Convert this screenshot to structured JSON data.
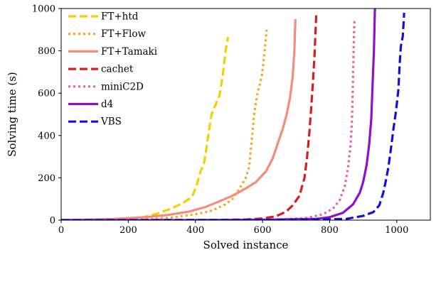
{
  "chart_data": {
    "type": "line",
    "xlabel": "Solved instance",
    "ylabel": "Solving time (s)",
    "xlim": [
      0,
      1100
    ],
    "ylim": [
      0,
      1000
    ],
    "xticks": [
      0,
      200,
      400,
      600,
      800,
      1000
    ],
    "yticks": [
      0,
      200,
      400,
      600,
      800,
      1000
    ],
    "grid": false,
    "legend_position": "top-left",
    "series": [
      {
        "name": "FT+htd",
        "color": "#f5d000",
        "dash": "dashed",
        "points": [
          [
            0,
            0
          ],
          [
            200,
            2
          ],
          [
            240,
            12
          ],
          [
            280,
            28
          ],
          [
            320,
            50
          ],
          [
            360,
            78
          ],
          [
            390,
            110
          ],
          [
            405,
            170
          ],
          [
            415,
            230
          ],
          [
            425,
            262
          ],
          [
            432,
            330
          ],
          [
            440,
            420
          ],
          [
            448,
            500
          ],
          [
            460,
            545
          ],
          [
            472,
            590
          ],
          [
            482,
            690
          ],
          [
            490,
            800
          ],
          [
            497,
            865
          ]
        ]
      },
      {
        "name": "FT+Flow",
        "color": "#f5a623",
        "dash": "dotted",
        "points": [
          [
            0,
            0
          ],
          [
            250,
            4
          ],
          [
            330,
            12
          ],
          [
            400,
            28
          ],
          [
            450,
            45
          ],
          [
            490,
            75
          ],
          [
            510,
            100
          ],
          [
            530,
            145
          ],
          [
            550,
            200
          ],
          [
            560,
            250
          ],
          [
            568,
            380
          ],
          [
            575,
            500
          ],
          [
            585,
            600
          ],
          [
            598,
            680
          ],
          [
            606,
            790
          ],
          [
            612,
            900
          ]
        ]
      },
      {
        "name": "FT+Tamaki",
        "color": "#f48c7c",
        "dash": "solid",
        "points": [
          [
            0,
            0
          ],
          [
            150,
            5
          ],
          [
            250,
            14
          ],
          [
            320,
            25
          ],
          [
            380,
            40
          ],
          [
            430,
            62
          ],
          [
            470,
            88
          ],
          [
            510,
            115
          ],
          [
            550,
            150
          ],
          [
            580,
            180
          ],
          [
            610,
            230
          ],
          [
            630,
            290
          ],
          [
            645,
            360
          ],
          [
            660,
            430
          ],
          [
            672,
            500
          ],
          [
            682,
            580
          ],
          [
            690,
            680
          ],
          [
            695,
            800
          ],
          [
            698,
            950
          ]
        ]
      },
      {
        "name": "cachet",
        "color": "#d42020",
        "dash": "dashed",
        "points": [
          [
            0,
            0
          ],
          [
            450,
            1
          ],
          [
            550,
            3
          ],
          [
            600,
            8
          ],
          [
            640,
            18
          ],
          [
            670,
            40
          ],
          [
            690,
            70
          ],
          [
            710,
            115
          ],
          [
            725,
            200
          ],
          [
            733,
            300
          ],
          [
            740,
            420
          ],
          [
            745,
            530
          ],
          [
            750,
            650
          ],
          [
            755,
            780
          ],
          [
            760,
            970
          ]
        ]
      },
      {
        "name": "miniC2D",
        "color": "#e860a0",
        "dash": "dotted",
        "points": [
          [
            0,
            0
          ],
          [
            500,
            1
          ],
          [
            650,
            3
          ],
          [
            730,
            10
          ],
          [
            780,
            28
          ],
          [
            810,
            55
          ],
          [
            830,
            95
          ],
          [
            845,
            160
          ],
          [
            855,
            250
          ],
          [
            862,
            350
          ],
          [
            866,
            450
          ],
          [
            868,
            560
          ],
          [
            870,
            700
          ],
          [
            872,
            850
          ],
          [
            874,
            950
          ]
        ]
      },
      {
        "name": "d4",
        "color": "#9010c8",
        "dash": "solid",
        "points": [
          [
            0,
            0
          ],
          [
            400,
            0
          ],
          [
            600,
            2
          ],
          [
            760,
            6
          ],
          [
            800,
            14
          ],
          [
            840,
            35
          ],
          [
            870,
            75
          ],
          [
            890,
            130
          ],
          [
            900,
            180
          ],
          [
            910,
            260
          ],
          [
            918,
            360
          ],
          [
            924,
            480
          ],
          [
            928,
            640
          ],
          [
            932,
            800
          ],
          [
            935,
            1000
          ]
        ]
      },
      {
        "name": "VBS",
        "color": "#1010e0",
        "dash": "dashed",
        "points": [
          [
            0,
            0
          ],
          [
            500,
            0
          ],
          [
            700,
            1
          ],
          [
            850,
            6
          ],
          [
            900,
            20
          ],
          [
            930,
            38
          ],
          [
            948,
            70
          ],
          [
            960,
            130
          ],
          [
            968,
            190
          ],
          [
            975,
            250
          ],
          [
            982,
            330
          ],
          [
            990,
            430
          ],
          [
            998,
            520
          ],
          [
            1005,
            620
          ],
          [
            1008,
            720
          ],
          [
            1012,
            820
          ],
          [
            1018,
            870
          ],
          [
            1022,
            980
          ]
        ]
      }
    ]
  }
}
